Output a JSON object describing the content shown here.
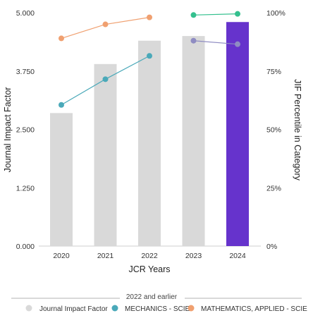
{
  "chart_data": {
    "type": "bar",
    "categories": [
      "2020",
      "2021",
      "2022",
      "2023",
      "2024"
    ],
    "xlabel": "JCR Years",
    "ylabel": "Journal Impact Factor",
    "y2label": "JIF Percentile in Category",
    "ylim": [
      0,
      5
    ],
    "y2lim": [
      0,
      100
    ],
    "yticks": [
      "0.000",
      "1.250",
      "2.500",
      "3.750",
      "5.000"
    ],
    "y2ticks": [
      "0%",
      "25%",
      "50%",
      "75%",
      "100%"
    ],
    "grid": false,
    "bars": {
      "name": "Journal Impact Factor",
      "values": [
        2.85,
        3.9,
        4.4,
        4.5,
        4.8
      ],
      "color": "#d9d9d9",
      "highlight_color": "#6633cc",
      "highlight_index": 4
    },
    "series": [
      {
        "name": "MECHANICS - SCIE",
        "axis": "right",
        "color": "#4aa9b9",
        "points": [
          [
            0,
            60.5
          ],
          [
            1,
            71.5
          ],
          [
            2,
            81.5
          ]
        ]
      },
      {
        "name": "MATHEMATICS, APPLIED - SCIE",
        "axis": "right",
        "color": "#f0a070",
        "points": [
          [
            0,
            89
          ],
          [
            1,
            95
          ],
          [
            2,
            98
          ]
        ]
      },
      {
        "name": "",
        "axis": "right",
        "color": "#34c08e",
        "points": [
          [
            3,
            99
          ],
          [
            4,
            99.5
          ]
        ]
      },
      {
        "name": "",
        "axis": "right",
        "color": "#8f8cc2",
        "points": [
          [
            3,
            88
          ],
          [
            4,
            86.5
          ]
        ]
      }
    ],
    "legend": {
      "placement": "bottom",
      "caption": "2022 and earlier",
      "items": [
        {
          "label": "Journal Impact Factor",
          "color": "#d9d9d9"
        },
        {
          "label": "MECHANICS - SCIE",
          "color": "#4aa9b9"
        },
        {
          "label": "MATHEMATICS, APPLIED - SCIE",
          "color": "#f0a070"
        }
      ]
    }
  }
}
